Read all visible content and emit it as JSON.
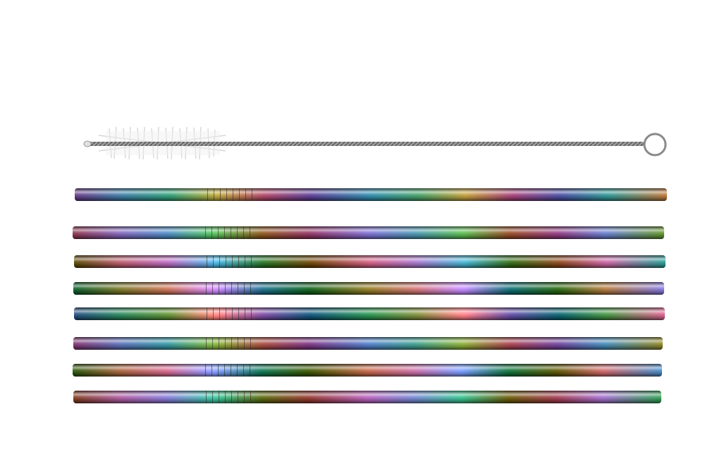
{
  "image": {
    "subject": "cleaning-brush-and-straws",
    "colors": {
      "background": "#ffffff",
      "wire": "#8a8a8a",
      "bristles": "#e8e8e8",
      "straw_tones": [
        "#6a3a8a",
        "#3b7fa8",
        "#2fa27a",
        "#c7b03a",
        "#b5476a",
        "#4a4ea6"
      ]
    }
  }
}
